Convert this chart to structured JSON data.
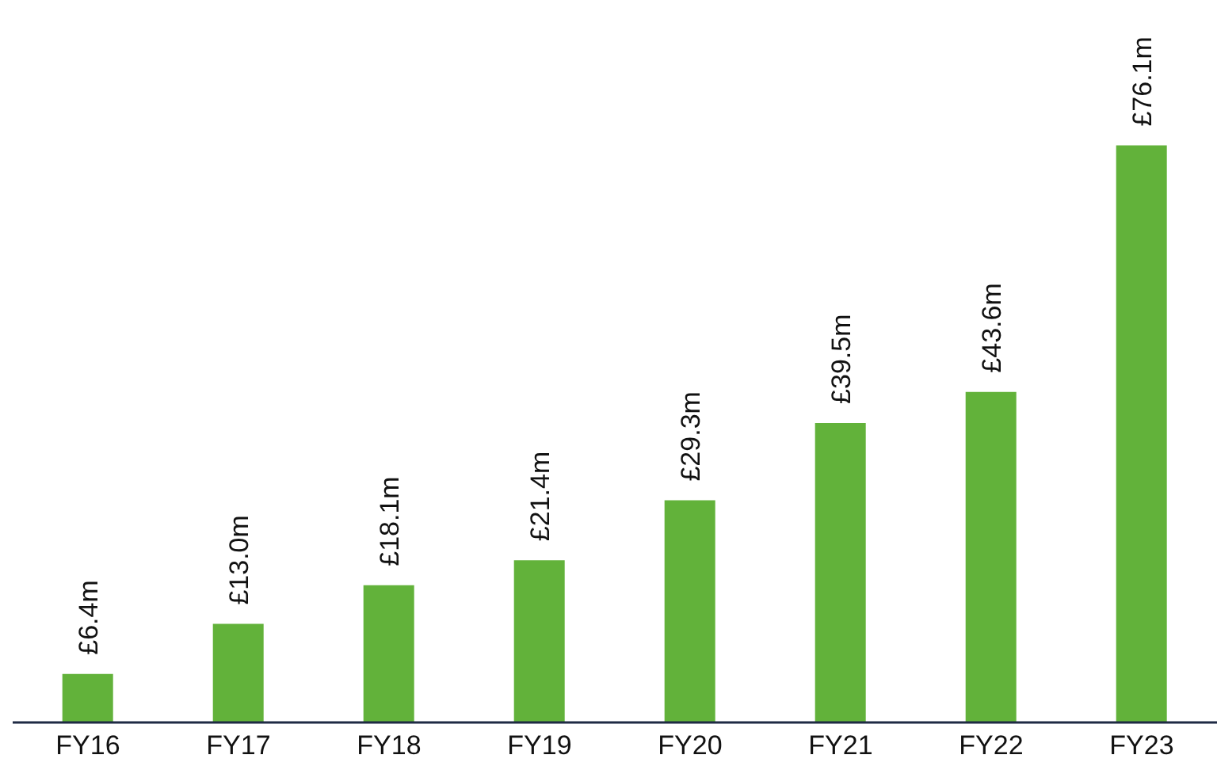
{
  "chart_data": {
    "type": "bar",
    "categories": [
      "FY16",
      "FY17",
      "FY18",
      "FY19",
      "FY20",
      "FY21",
      "FY22",
      "FY23"
    ],
    "values": [
      6.4,
      13.0,
      18.1,
      21.4,
      29.3,
      39.5,
      43.6,
      76.1
    ],
    "value_labels": [
      "£6.4m",
      "£13.0m",
      "£18.1m",
      "£21.4m",
      "£29.3m",
      "£39.5m",
      "£43.6m",
      "£76.1m"
    ],
    "color": "#62b23a",
    "grid": false,
    "legend": false
  }
}
